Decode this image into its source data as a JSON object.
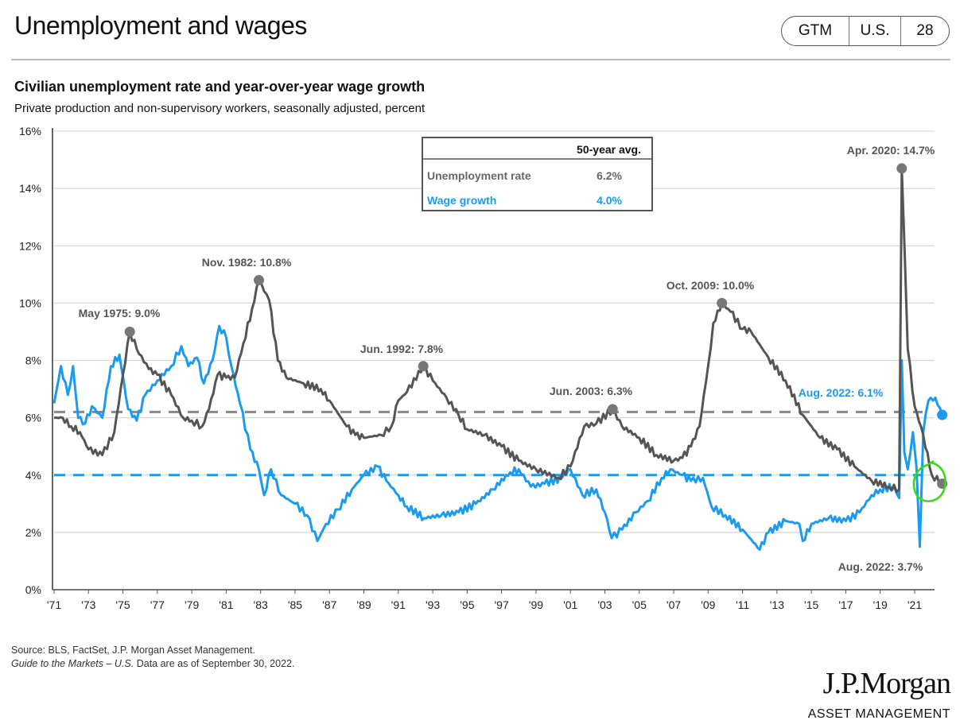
{
  "header": {
    "title": "Unemployment and wages",
    "badge": [
      "GTM",
      "U.S.",
      "28"
    ]
  },
  "footer": {
    "source": "Source: BLS, FactSet, J.P. Morgan Asset Management.",
    "guide_italic": "Guide to the Markets – U.S.",
    "guide_rest": " Data are as of September 30, 2022.",
    "logo_main": "J.P.Morgan",
    "logo_sub": "ASSET MANAGEMENT"
  },
  "colors": {
    "unemployment": "#555555",
    "wage": "#1a9bf0",
    "highlight": "#33dd11"
  },
  "chart_data": {
    "type": "line",
    "title": "Civilian unemployment rate and year-over-year wage growth",
    "subtitle": "Private production and non-supervisory workers, seasonally adjusted, percent",
    "ylim": [
      0,
      16
    ],
    "yticks": [
      "0%",
      "2%",
      "4%",
      "6%",
      "8%",
      "10%",
      "12%",
      "14%",
      "16%"
    ],
    "xlim": [
      1971,
      2022.7
    ],
    "xticks": [
      "'71",
      "'73",
      "'75",
      "'77",
      "'79",
      "'81",
      "'83",
      "'85",
      "'87",
      "'89",
      "'91",
      "'93",
      "'95",
      "'97",
      "'99",
      "'01",
      "'03",
      "'05",
      "'07",
      "'09",
      "'11",
      "'13",
      "'15",
      "'17",
      "'19",
      "'21"
    ],
    "legend": {
      "header": "50-year avg.",
      "rows": [
        {
          "label": "Unemployment rate",
          "value": "6.2%",
          "avg": 6.2
        },
        {
          "label": "Wage growth",
          "value": "4.0%",
          "avg": 4.0
        }
      ]
    },
    "series": [
      {
        "name": "Unemployment rate",
        "points": [
          [
            1971.0,
            6.0
          ],
          [
            1971.5,
            6.0
          ],
          [
            1972.0,
            5.7
          ],
          [
            1972.5,
            5.5
          ],
          [
            1973.0,
            4.9
          ],
          [
            1973.8,
            4.7
          ],
          [
            1974.5,
            5.5
          ],
          [
            1975.0,
            7.5
          ],
          [
            1975.4,
            9.0
          ],
          [
            1975.8,
            8.4
          ],
          [
            1976.5,
            7.7
          ],
          [
            1977.0,
            7.5
          ],
          [
            1977.8,
            6.8
          ],
          [
            1978.5,
            6.0
          ],
          [
            1979.0,
            5.9
          ],
          [
            1979.6,
            5.7
          ],
          [
            1980.0,
            6.3
          ],
          [
            1980.5,
            7.5
          ],
          [
            1981.0,
            7.4
          ],
          [
            1981.5,
            7.4
          ],
          [
            1982.0,
            8.6
          ],
          [
            1982.5,
            9.8
          ],
          [
            1982.9,
            10.8
          ],
          [
            1983.5,
            10.1
          ],
          [
            1984.0,
            8.0
          ],
          [
            1984.5,
            7.4
          ],
          [
            1985.5,
            7.2
          ],
          [
            1986.5,
            7.0
          ],
          [
            1987.0,
            6.6
          ],
          [
            1988.0,
            5.7
          ],
          [
            1988.5,
            5.4
          ],
          [
            1989.0,
            5.3
          ],
          [
            1990.0,
            5.4
          ],
          [
            1990.6,
            5.7
          ],
          [
            1991.0,
            6.6
          ],
          [
            1991.5,
            6.9
          ],
          [
            1992.45,
            7.8
          ],
          [
            1993.0,
            7.3
          ],
          [
            1993.8,
            6.7
          ],
          [
            1994.5,
            6.1
          ],
          [
            1995.0,
            5.6
          ],
          [
            1996.0,
            5.4
          ],
          [
            1997.0,
            5.0
          ],
          [
            1998.0,
            4.5
          ],
          [
            1999.0,
            4.2
          ],
          [
            2000.3,
            3.9
          ],
          [
            2001.0,
            4.3
          ],
          [
            2001.8,
            5.7
          ],
          [
            2002.5,
            5.8
          ],
          [
            2003.45,
            6.3
          ],
          [
            2004.0,
            5.7
          ],
          [
            2005.0,
            5.3
          ],
          [
            2006.0,
            4.7
          ],
          [
            2007.0,
            4.5
          ],
          [
            2007.5,
            4.6
          ],
          [
            2008.0,
            5.0
          ],
          [
            2008.5,
            5.7
          ],
          [
            2009.0,
            7.8
          ],
          [
            2009.3,
            9.3
          ],
          [
            2009.8,
            10.0
          ],
          [
            2010.3,
            9.7
          ],
          [
            2011.0,
            9.1
          ],
          [
            2011.5,
            9.0
          ],
          [
            2012.5,
            8.1
          ],
          [
            2013.5,
            7.3
          ],
          [
            2014.5,
            6.1
          ],
          [
            2015.5,
            5.3
          ],
          [
            2016.5,
            4.9
          ],
          [
            2017.5,
            4.3
          ],
          [
            2018.5,
            3.8
          ],
          [
            2019.5,
            3.6
          ],
          [
            2020.1,
            3.5
          ],
          [
            2020.25,
            14.7
          ],
          [
            2020.6,
            8.4
          ],
          [
            2021.0,
            6.4
          ],
          [
            2021.5,
            5.4
          ],
          [
            2022.0,
            4.0
          ],
          [
            2022.6,
            3.7
          ]
        ]
      },
      {
        "name": "Wage growth",
        "points": [
          [
            1971.0,
            6.5
          ],
          [
            1971.4,
            7.8
          ],
          [
            1971.8,
            6.8
          ],
          [
            1972.1,
            7.8
          ],
          [
            1972.4,
            6.0
          ],
          [
            1972.8,
            5.8
          ],
          [
            1973.2,
            6.4
          ],
          [
            1973.8,
            6.0
          ],
          [
            1974.3,
            7.8
          ],
          [
            1974.8,
            8.2
          ],
          [
            1975.3,
            6.3
          ],
          [
            1975.8,
            5.9
          ],
          [
            1976.3,
            6.8
          ],
          [
            1977.0,
            7.3
          ],
          [
            1977.8,
            7.8
          ],
          [
            1978.4,
            8.5
          ],
          [
            1978.8,
            7.8
          ],
          [
            1979.3,
            8.1
          ],
          [
            1979.7,
            7.2
          ],
          [
            1980.2,
            8.0
          ],
          [
            1980.6,
            9.2
          ],
          [
            1981.0,
            8.8
          ],
          [
            1981.3,
            7.8
          ],
          [
            1981.8,
            6.5
          ],
          [
            1982.4,
            4.9
          ],
          [
            1982.9,
            4.2
          ],
          [
            1983.2,
            3.3
          ],
          [
            1983.6,
            4.2
          ],
          [
            1984.2,
            3.3
          ],
          [
            1985.0,
            3.0
          ],
          [
            1985.7,
            2.6
          ],
          [
            1986.3,
            1.7
          ],
          [
            1986.8,
            2.3
          ],
          [
            1987.5,
            2.8
          ],
          [
            1988.3,
            3.5
          ],
          [
            1989.0,
            4.0
          ],
          [
            1989.8,
            4.3
          ],
          [
            1990.3,
            3.8
          ],
          [
            1991.0,
            3.3
          ],
          [
            1991.5,
            2.9
          ],
          [
            1992.5,
            2.5
          ],
          [
            1993.5,
            2.6
          ],
          [
            1994.5,
            2.7
          ],
          [
            1995.5,
            3.0
          ],
          [
            1996.5,
            3.5
          ],
          [
            1997.5,
            4.1
          ],
          [
            1998.0,
            4.2
          ],
          [
            1998.7,
            3.6
          ],
          [
            1999.5,
            3.7
          ],
          [
            2000.5,
            3.9
          ],
          [
            2001.0,
            4.2
          ],
          [
            2001.7,
            3.3
          ],
          [
            2002.5,
            3.5
          ],
          [
            2003.0,
            2.7
          ],
          [
            2003.4,
            1.8
          ],
          [
            2004.0,
            2.1
          ],
          [
            2004.8,
            2.7
          ],
          [
            2005.5,
            3.1
          ],
          [
            2006.3,
            3.9
          ],
          [
            2006.8,
            4.2
          ],
          [
            2007.5,
            4.0
          ],
          [
            2008.0,
            3.8
          ],
          [
            2008.7,
            3.9
          ],
          [
            2009.2,
            2.9
          ],
          [
            2010.0,
            2.6
          ],
          [
            2011.0,
            2.1
          ],
          [
            2012.0,
            1.4
          ],
          [
            2012.5,
            2.0
          ],
          [
            2013.5,
            2.4
          ],
          [
            2014.3,
            2.3
          ],
          [
            2014.5,
            1.7
          ],
          [
            2015.0,
            2.3
          ],
          [
            2016.0,
            2.5
          ],
          [
            2017.0,
            2.4
          ],
          [
            2017.8,
            2.7
          ],
          [
            2018.5,
            3.3
          ],
          [
            2019.0,
            3.5
          ],
          [
            2019.8,
            3.6
          ],
          [
            2020.1,
            3.2
          ],
          [
            2020.25,
            8.0
          ],
          [
            2020.4,
            4.8
          ],
          [
            2020.6,
            4.2
          ],
          [
            2020.9,
            5.5
          ],
          [
            2021.1,
            4.3
          ],
          [
            2021.3,
            1.5
          ],
          [
            2021.5,
            5.5
          ],
          [
            2021.8,
            6.6
          ],
          [
            2022.2,
            6.7
          ],
          [
            2022.6,
            6.1
          ]
        ]
      }
    ],
    "annotations": [
      {
        "label": "May 1975: 9.0%",
        "x": 1975.4,
        "y": 9.0,
        "series": 0
      },
      {
        "label": "Nov. 1982: 10.8%",
        "x": 1982.9,
        "y": 10.8,
        "series": 0
      },
      {
        "label": "Jun. 1992: 7.8%",
        "x": 1992.45,
        "y": 7.8,
        "series": 0
      },
      {
        "label": "Jun. 2003: 6.3%",
        "x": 2003.45,
        "y": 6.3,
        "series": 0
      },
      {
        "label": "Oct. 2009: 10.0%",
        "x": 2009.8,
        "y": 10.0,
        "series": 0
      },
      {
        "label": "Apr. 2020: 14.7%",
        "x": 2020.25,
        "y": 14.7,
        "series": 0
      },
      {
        "label": "Aug. 2022: 6.1%",
        "x": 2022.6,
        "y": 6.1,
        "series": 1
      },
      {
        "label": "Aug. 2022: 3.7%",
        "x": 2022.6,
        "y": 3.7,
        "series": 0
      }
    ]
  }
}
